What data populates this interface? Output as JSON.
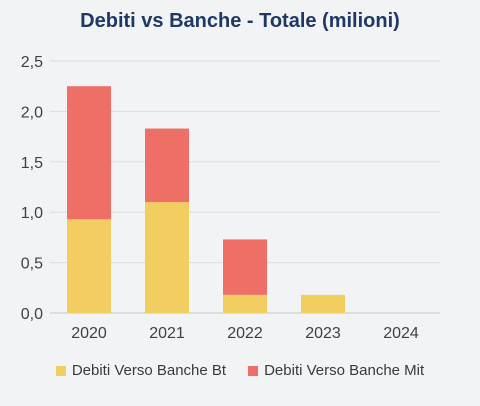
{
  "chart_data": {
    "type": "bar",
    "stacked": true,
    "title": "Debiti vs Banche - Totale (milioni)",
    "categories": [
      "2020",
      "2021",
      "2022",
      "2023",
      "2024"
    ],
    "series": [
      {
        "name": "Debiti Verso Banche Bt",
        "color": "#f2cd60",
        "values": [
          0.93,
          1.1,
          0.18,
          0.18,
          0
        ]
      },
      {
        "name": "Debiti Verso Banche Mit",
        "color": "#ee6f65",
        "values": [
          1.32,
          0.73,
          0.55,
          0,
          0
        ]
      }
    ],
    "ylim": [
      0,
      2.5
    ],
    "yticks": [
      "0,0",
      "0,5",
      "1,0",
      "1,5",
      "2,0",
      "2,5"
    ],
    "grid": true,
    "legend_position": "bottom"
  }
}
